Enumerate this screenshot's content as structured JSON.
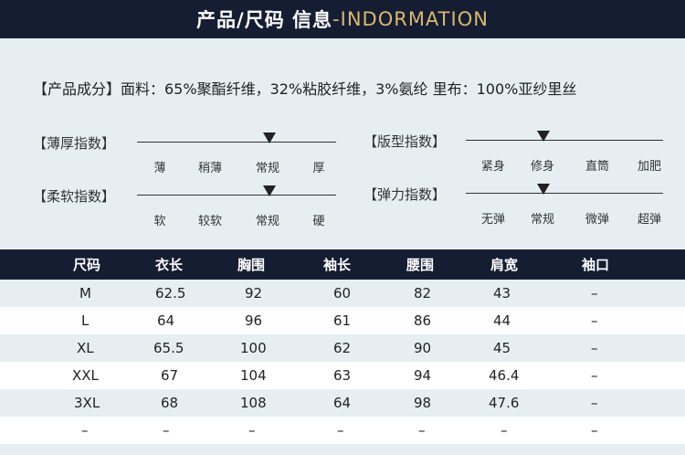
{
  "header": {
    "title_cn": "产品/尺码 信息",
    "title_en": "-INDORMATION"
  },
  "composition": "【产品成分】面料：65%聚酯纤维，32%粘胶纤维，3%氨纶   里布：100%亚纱里丝",
  "scales": {
    "thickness": {
      "label": "【薄厚指数】",
      "options": [
        "薄",
        "稍薄",
        "常规",
        "厚"
      ],
      "selected": "常规"
    },
    "fit": {
      "label": "【版型指数】",
      "options": [
        "紧身",
        "修身",
        "直筒",
        "加肥"
      ],
      "selected": "修身"
    },
    "softness": {
      "label": "【柔软指数】",
      "options": [
        "软",
        "较软",
        "常规",
        "硬"
      ],
      "selected": "常规"
    },
    "elasticity": {
      "label": "【弹力指数】",
      "options": [
        "无弹",
        "常规",
        "微弹",
        "超弹"
      ],
      "selected": "常规"
    }
  },
  "size_table": {
    "headers": [
      "尺码",
      "衣长",
      "胸围",
      "袖长",
      "腰围",
      "肩宽",
      "袖口"
    ],
    "rows": [
      [
        "M",
        "62.5",
        "92",
        "60",
        "82",
        "43",
        "–"
      ],
      [
        "L",
        "64",
        "96",
        "61",
        "86",
        "44",
        "–"
      ],
      [
        "XL",
        "65.5",
        "100",
        "62",
        "90",
        "45",
        "–"
      ],
      [
        "XXL",
        "67",
        "104",
        "63",
        "94",
        "46.4",
        "–"
      ],
      [
        "3XL",
        "68",
        "108",
        "64",
        "98",
        "47.6",
        "–"
      ],
      [
        "–",
        "–",
        "–",
        "–",
        "–",
        "–",
        "–"
      ]
    ]
  },
  "colors": {
    "header_bg": "#151d33",
    "header_en_accent": "#d9b96a",
    "panel_bg": "#e6eef1"
  }
}
